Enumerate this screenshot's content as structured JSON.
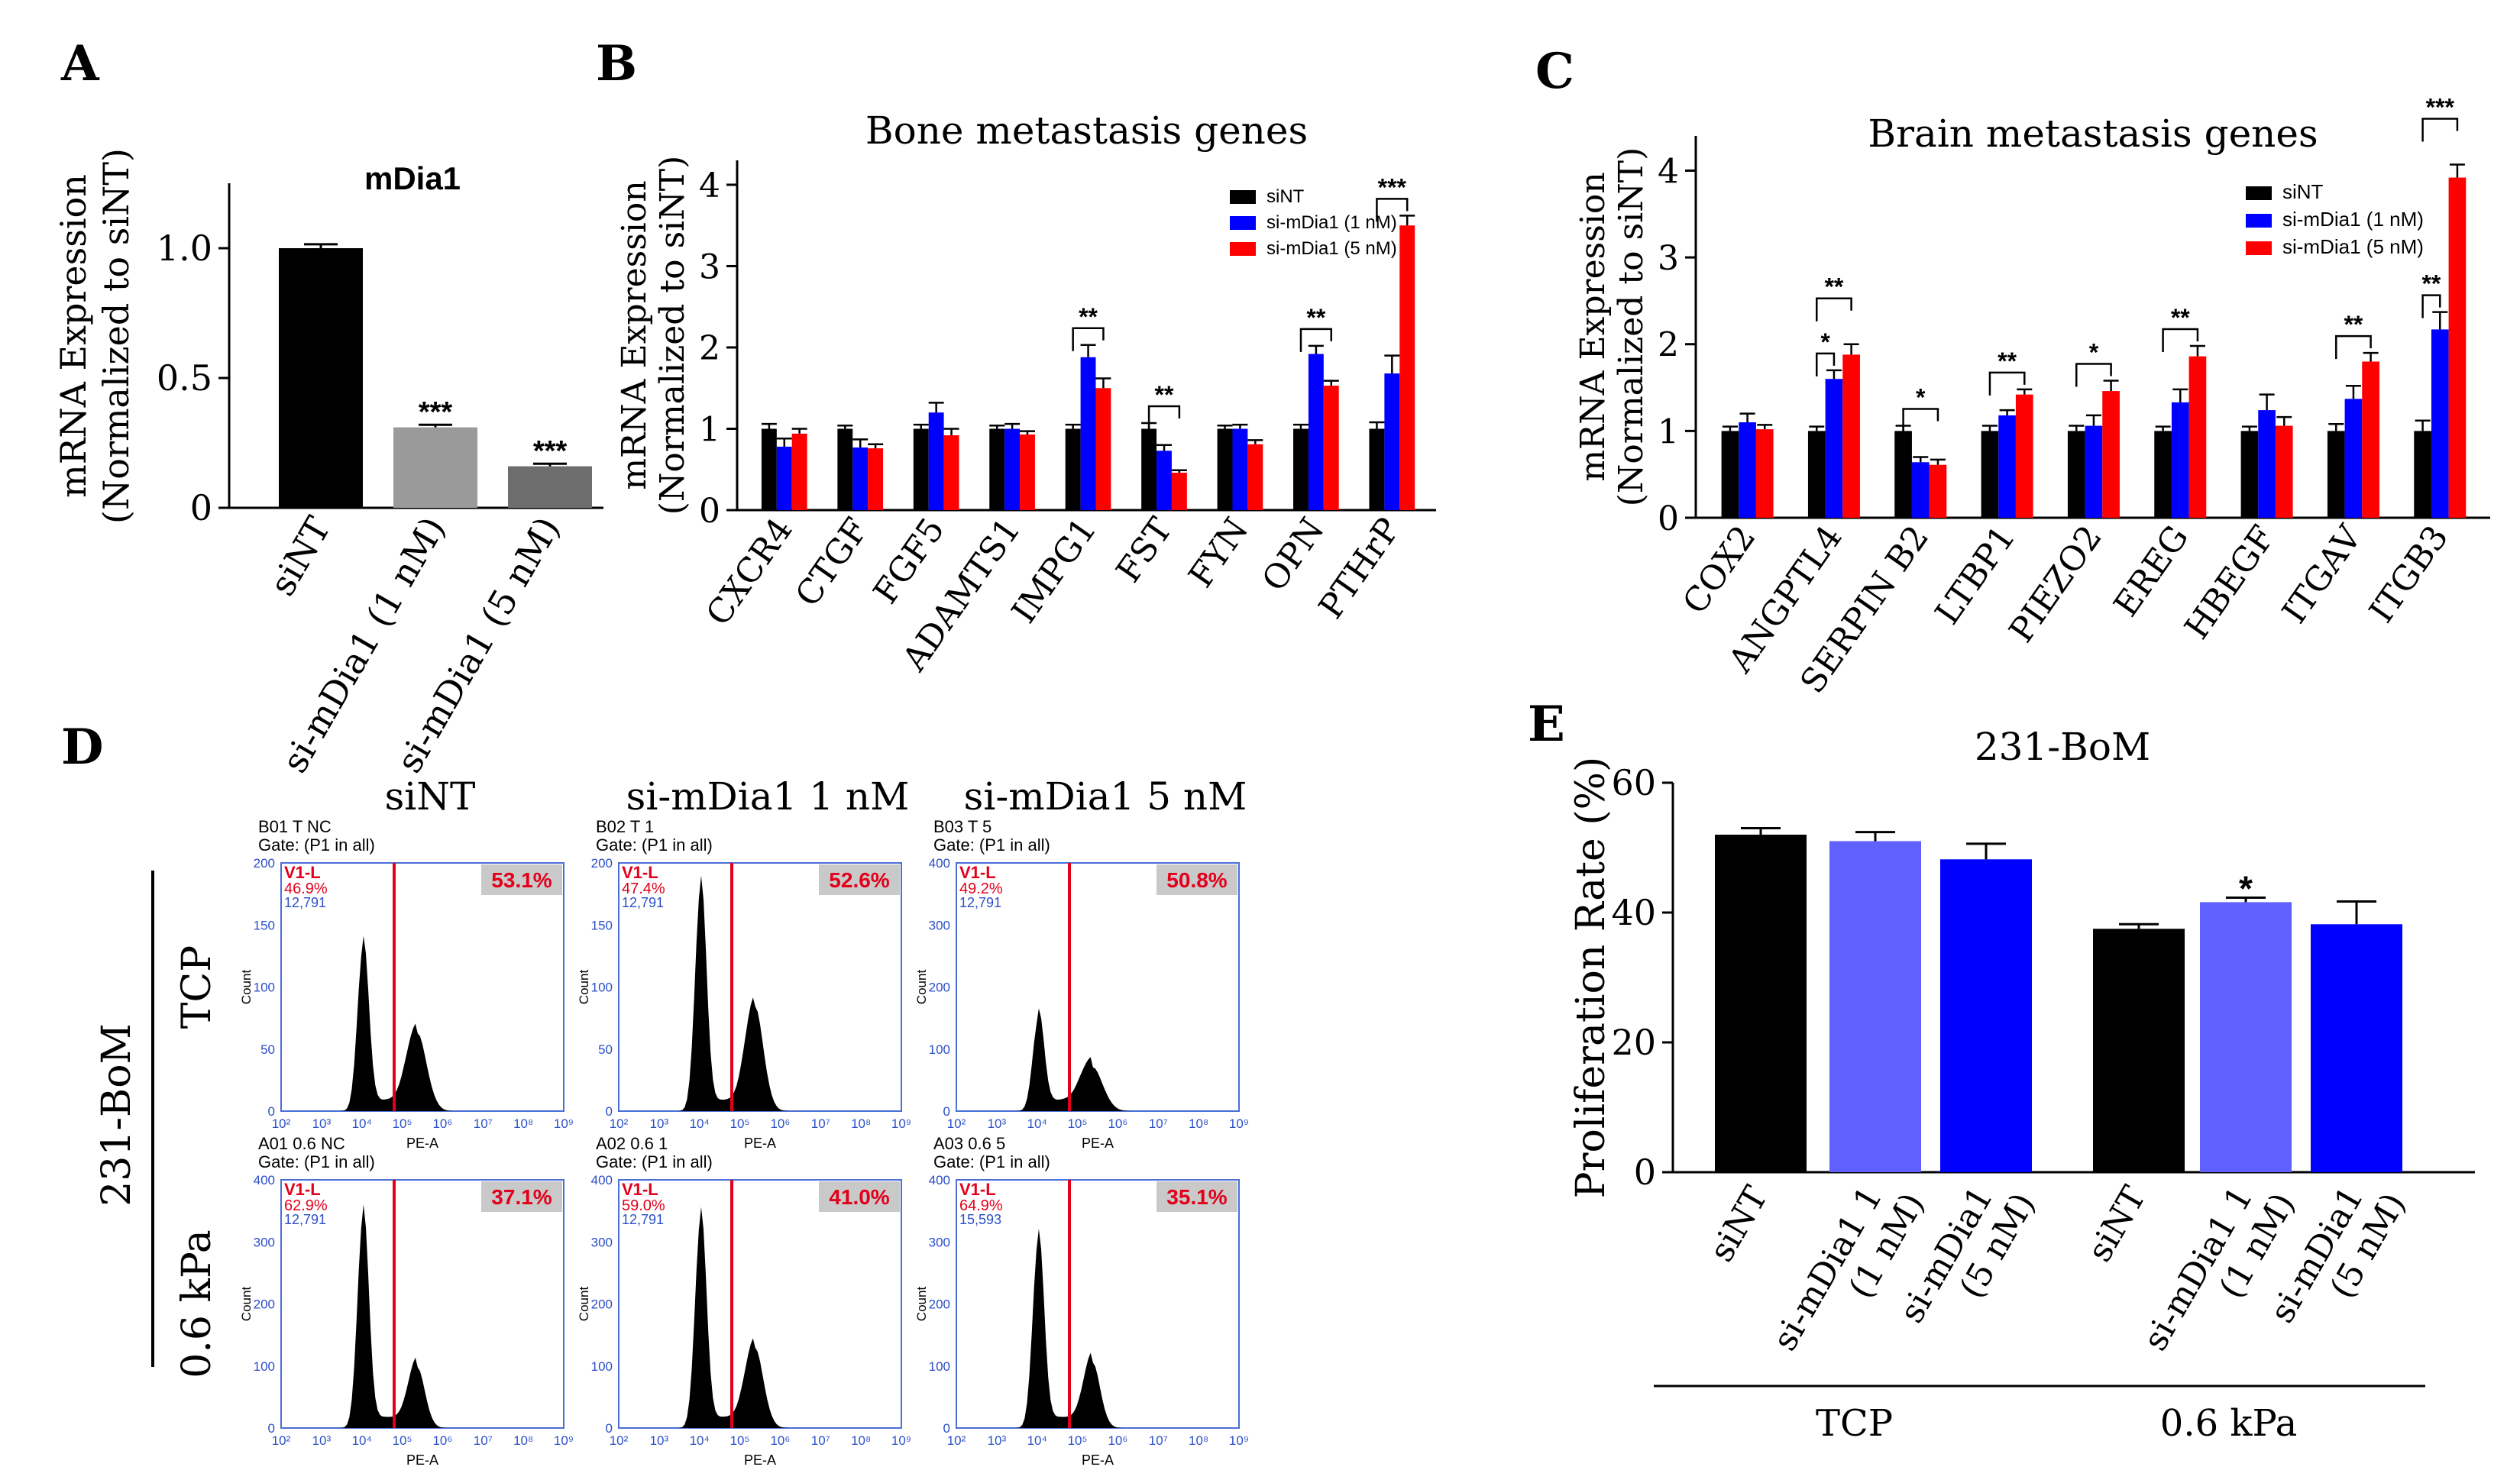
{
  "panels": {
    "A": "A",
    "B": "B",
    "C": "C",
    "D": "D",
    "E": "E"
  },
  "chart_data": [
    {
      "id": "A",
      "type": "bar",
      "title": "mDia1",
      "ylabel": "mRNA Expression",
      "ylabel2": "(Normalized to siNT)",
      "ylim": [
        0,
        1.25
      ],
      "ticks": [
        0,
        0.5,
        1.0
      ],
      "tick_labels": [
        "0",
        "0.5",
        "1.0"
      ],
      "categories": [
        "siNT",
        "si-mDia1 (1 nM)",
        "si-mDia1 (5 nM)"
      ],
      "values": [
        1.0,
        0.31,
        0.16
      ],
      "errors": [
        0.015,
        0.01,
        0.01
      ],
      "colors": [
        "#000000",
        "#9a9a9a",
        "#6e6e6e"
      ],
      "annotations": [
        "",
        "***",
        "***"
      ]
    },
    {
      "id": "B",
      "type": "bar",
      "title": "Bone metastasis genes",
      "ylabel": "mRNA Expression",
      "ylabel2": "(Normalized to siNT)",
      "ylim": [
        0,
        4.3
      ],
      "ticks": [
        0,
        1,
        2,
        3,
        4
      ],
      "tick_labels": [
        "0",
        "1",
        "2",
        "3",
        "4"
      ],
      "categories": [
        "CXCR4",
        "CTGF",
        "FGF5",
        "ADAMTS1",
        "IMPG1",
        "FST",
        "FYN",
        "OPN",
        "PTHrP"
      ],
      "series": [
        {
          "name": "siNT",
          "color": "#000000",
          "values": [
            1.0,
            1.0,
            1.0,
            1.0,
            1.0,
            1.0,
            1.0,
            1.0,
            1.0
          ],
          "errors": [
            0.06,
            0.04,
            0.05,
            0.04,
            0.05,
            0.07,
            0.04,
            0.05,
            0.08
          ]
        },
        {
          "name": "si-mDia1 (1 nM)",
          "color": "#0000ff",
          "values": [
            0.78,
            0.77,
            1.2,
            1.0,
            1.88,
            0.73,
            1.0,
            1.92,
            1.68
          ],
          "errors": [
            0.1,
            0.1,
            0.12,
            0.06,
            0.15,
            0.07,
            0.05,
            0.1,
            0.22
          ]
        },
        {
          "name": "si-mDia1 (5 nM)",
          "color": "#ff0000",
          "values": [
            0.94,
            0.76,
            0.92,
            0.93,
            1.5,
            0.46,
            0.81,
            1.53,
            3.5
          ],
          "errors": [
            0.06,
            0.05,
            0.08,
            0.04,
            0.12,
            0.03,
            0.05,
            0.06,
            0.12
          ]
        }
      ],
      "significance": [
        {
          "cat": 4,
          "label": "**"
        },
        {
          "cat": 5,
          "label": "**"
        },
        {
          "cat": 7,
          "label": "**"
        },
        {
          "cat": 8,
          "label": "***"
        }
      ]
    },
    {
      "id": "C",
      "type": "bar",
      "title": "Brain metastasis genes",
      "ylabel": "mRNA Expression",
      "ylabel2": "(Normalized to siNT)",
      "ylim": [
        0,
        4.4
      ],
      "ticks": [
        0,
        1,
        2,
        3,
        4
      ],
      "tick_labels": [
        "0",
        "1",
        "2",
        "3",
        "4"
      ],
      "categories": [
        "COX2",
        "ANGPTL4",
        "SERPIN B2",
        "LTBP1",
        "PIEZO2",
        "EREG",
        "HBEGF",
        "ITGAV",
        "ITGB3"
      ],
      "series": [
        {
          "name": "siNT",
          "color": "#000000",
          "values": [
            1.0,
            1.0,
            1.0,
            1.0,
            1.0,
            1.0,
            1.0,
            1.0,
            1.0
          ],
          "errors": [
            0.05,
            0.05,
            0.06,
            0.06,
            0.06,
            0.05,
            0.05,
            0.08,
            0.12
          ]
        },
        {
          "name": "si-mDia1 (1 nM)",
          "color": "#0000ff",
          "values": [
            1.1,
            1.6,
            0.64,
            1.18,
            1.06,
            1.33,
            1.24,
            1.37,
            2.17
          ],
          "errors": [
            0.1,
            0.1,
            0.06,
            0.06,
            0.12,
            0.15,
            0.18,
            0.15,
            0.2
          ]
        },
        {
          "name": "si-mDia1 (5 nM)",
          "color": "#ff0000",
          "values": [
            1.02,
            1.88,
            0.61,
            1.42,
            1.46,
            1.86,
            1.06,
            1.8,
            3.92
          ],
          "errors": [
            0.05,
            0.12,
            0.06,
            0.06,
            0.12,
            0.12,
            0.1,
            0.1,
            0.15
          ]
        }
      ],
      "significance": [
        {
          "cat": 1,
          "label": "*",
          "pair": "01"
        },
        {
          "cat": 1,
          "label": "**",
          "pair": "02"
        },
        {
          "cat": 2,
          "label": "*"
        },
        {
          "cat": 3,
          "label": "**"
        },
        {
          "cat": 4,
          "label": "*"
        },
        {
          "cat": 5,
          "label": "**"
        },
        {
          "cat": 7,
          "label": "**"
        },
        {
          "cat": 8,
          "label": "**",
          "pair": "01"
        },
        {
          "cat": 8,
          "label": "***",
          "pair": "02"
        }
      ]
    },
    {
      "id": "E",
      "type": "bar",
      "title": "231-BoM",
      "ylabel": "Proliferation Rate (%)",
      "ylim": [
        0,
        60
      ],
      "ticks": [
        0,
        20,
        40,
        60
      ],
      "tick_labels": [
        "0",
        "20",
        "40",
        "60"
      ],
      "categories": [
        "siNT",
        "si-mDia1 1 (1 nM)",
        "si-mDia1 (5 nM)",
        "siNT",
        "si-mDia1 1 (1 nM)",
        "si-mDia1 (5 nM)"
      ],
      "category_lines": [
        [
          "siNT"
        ],
        [
          "si-mDia1 1",
          "(1 nM)"
        ],
        [
          "si-mDia1",
          "(5 nM)"
        ],
        [
          "siNT"
        ],
        [
          "si-mDia1 1",
          "(1 nM)"
        ],
        [
          "si-mDia1",
          "(5 nM)"
        ]
      ],
      "values": [
        52.0,
        51.0,
        48.2,
        37.5,
        41.6,
        38.2
      ],
      "errors": [
        1.0,
        1.4,
        2.4,
        0.7,
        0.7,
        3.5
      ],
      "colors": [
        "#000000",
        "#6060ff",
        "#0000ff",
        "#000000",
        "#6060ff",
        "#0000ff"
      ],
      "annotations": [
        "",
        "",
        "",
        "",
        "*",
        ""
      ],
      "groups": [
        {
          "label": "TCP",
          "from": 0,
          "to": 2
        },
        {
          "label": "0.6 kPa",
          "from": 3,
          "to": 5
        }
      ]
    }
  ],
  "panel_d": {
    "columns": [
      "siNT",
      "si-mDia1  1 nM",
      "si-mDia1  5 nM"
    ],
    "rows": [
      "TCP",
      "0.6 kPa"
    ],
    "side_label": "231-BoM",
    "x_ticks": [
      "10²",
      "10³",
      "10⁴",
      "10⁵",
      "10⁶",
      "10⁷",
      "10⁸",
      "10⁹"
    ],
    "x_label": "PE-A",
    "y_label": "Count",
    "gate": "Gate: (P1 in all)",
    "gate_name": "V1-L",
    "plots": [
      {
        "sample": "B01 T NC",
        "left_pct": "46.9%",
        "events": "12,791",
        "right_pct": "53.1%",
        "ymax": 200,
        "yticks": [
          "0",
          "50",
          "100",
          "150",
          "200"
        ]
      },
      {
        "sample": "B02 T 1",
        "left_pct": "47.4%",
        "events": "12,791",
        "right_pct": "52.6%",
        "ymax": 200,
        "yticks": [
          "0",
          "50",
          "100",
          "150",
          "200"
        ]
      },
      {
        "sample": "B03 T 5",
        "left_pct": "49.2%",
        "events": "12,791",
        "right_pct": "50.8%",
        "ymax": 400,
        "yticks": [
          "0",
          "100",
          "200",
          "300",
          "400"
        ]
      },
      {
        "sample": "A01 0.6 NC",
        "left_pct": "62.9%",
        "events": "12,791",
        "right_pct": "37.1%",
        "ymax": 400,
        "yticks": [
          "0",
          "100",
          "200",
          "300",
          "400"
        ]
      },
      {
        "sample": "A02 0.6 1",
        "left_pct": "59.0%",
        "events": "12,791",
        "right_pct": "41.0%",
        "ymax": 400,
        "yticks": [
          "0",
          "100",
          "200",
          "300",
          "400"
        ]
      },
      {
        "sample": "A03 0.6 5",
        "left_pct": "64.9%",
        "events": "15,593",
        "right_pct": "35.1%",
        "ymax": 400,
        "yticks": [
          "0",
          "100",
          "200",
          "300",
          "400"
        ]
      }
    ],
    "histograms": [
      {
        "g1": 0.68,
        "g2": 0.32,
        "w1": 1.0,
        "w2": 1.1
      },
      {
        "g1": 0.93,
        "g2": 0.43,
        "w1": 1.0,
        "w2": 1.0
      },
      {
        "g1": 0.38,
        "g2": 0.18,
        "w1": 1.0,
        "w2": 1.2
      },
      {
        "g1": 0.88,
        "g2": 0.25,
        "w1": 1.0,
        "w2": 0.9
      },
      {
        "g1": 0.87,
        "g2": 0.33,
        "w1": 1.0,
        "w2": 1.0
      },
      {
        "g1": 0.78,
        "g2": 0.27,
        "w1": 1.0,
        "w2": 0.9
      }
    ]
  }
}
